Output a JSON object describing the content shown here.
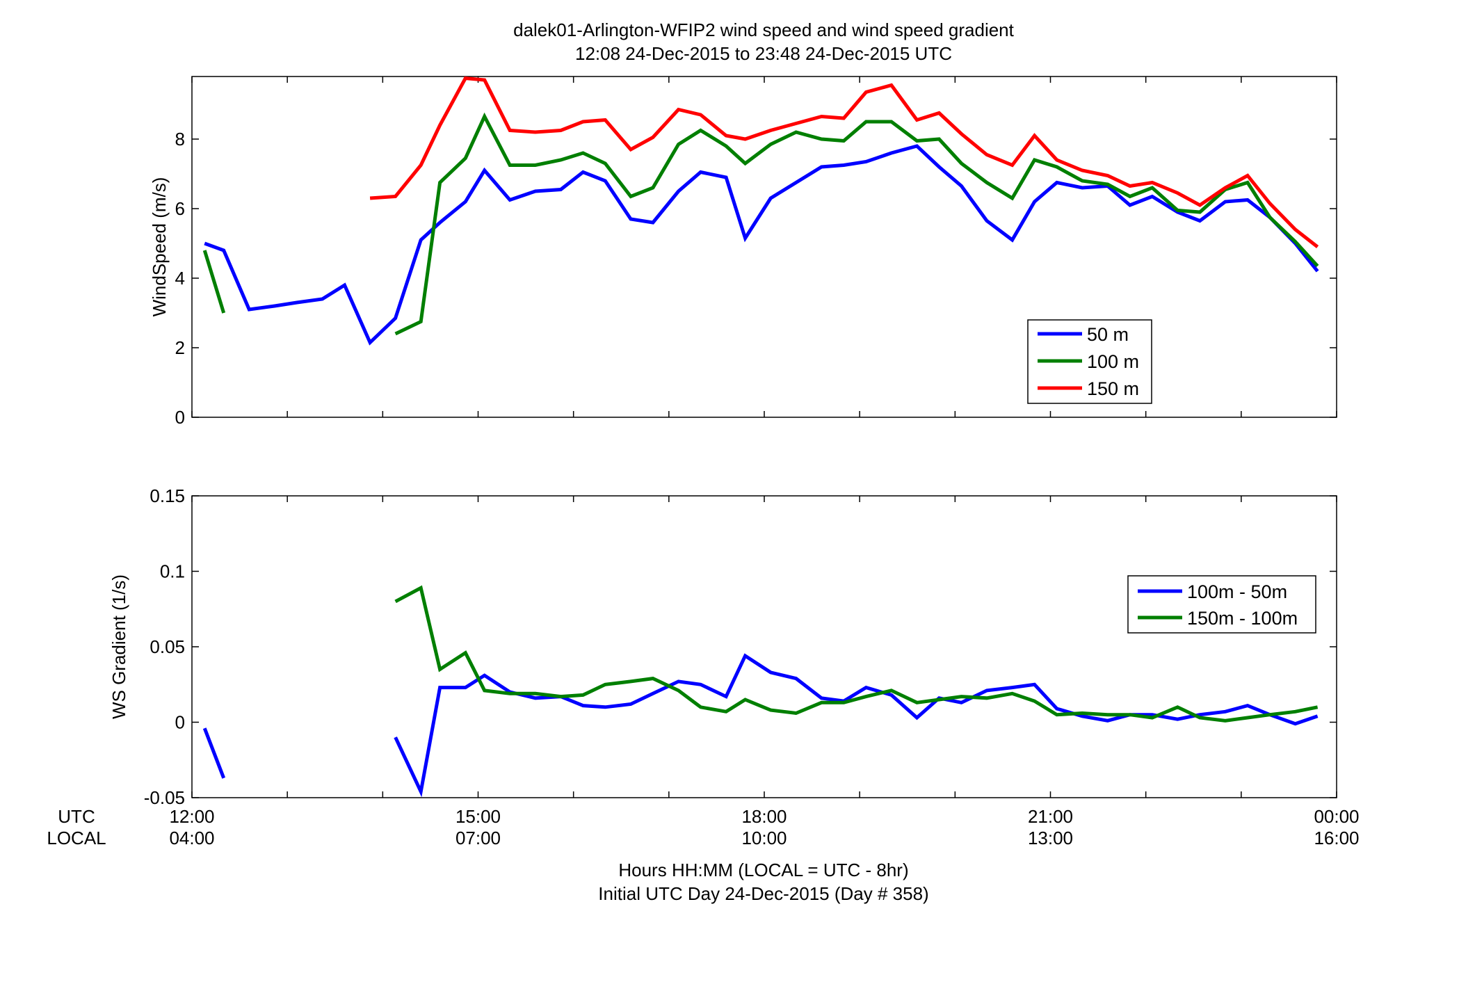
{
  "figure": {
    "title_line1": "dalek01-Arlington-WFIP2  wind speed and wind speed gradient",
    "title_line2": "12:08 24-Dec-2015 to 23:48 24-Dec-2015  UTC",
    "xlabel_line1": "Hours HH:MM  (LOCAL = UTC - 8hr)",
    "xlabel_line2": "Initial UTC Day 24-Dec-2015 (Day # 358)",
    "row_label_utc": "UTC",
    "row_label_local": "LOCAL",
    "utc_ticks": [
      "12:00",
      "15:00",
      "18:00",
      "21:00",
      "00:00"
    ],
    "local_ticks": [
      "04:00",
      "07:00",
      "10:00",
      "13:00",
      "16:00"
    ]
  },
  "chart_data": [
    {
      "type": "line",
      "ylabel": "WindSpeed (m/s)",
      "xlim": [
        12,
        24
      ],
      "ylim": [
        0,
        9.8
      ],
      "yticks": [
        0,
        2,
        4,
        6,
        8
      ],
      "ytick_labels": [
        "0",
        "2",
        "4",
        "6",
        "8"
      ],
      "legend_position": "lower-right",
      "x": [
        12.133,
        12.333,
        12.6,
        12.867,
        13.1,
        13.367,
        13.6,
        13.867,
        14.133,
        14.4,
        14.6,
        14.867,
        15.067,
        15.333,
        15.6,
        15.867,
        16.1,
        16.333,
        16.6,
        16.833,
        17.1,
        17.333,
        17.6,
        17.8,
        18.067,
        18.333,
        18.6,
        18.833,
        19.067,
        19.333,
        19.6,
        19.833,
        20.067,
        20.333,
        20.6,
        20.833,
        21.067,
        21.333,
        21.6,
        21.833,
        22.067,
        22.333,
        22.567,
        22.833,
        23.067,
        23.3,
        23.567,
        23.8
      ],
      "series": [
        {
          "name": "50 m",
          "color": "#0000ff",
          "values": [
            5.0,
            4.8,
            3.1,
            3.2,
            3.3,
            3.4,
            3.8,
            2.15,
            2.85,
            5.1,
            5.6,
            6.2,
            7.1,
            6.25,
            6.5,
            6.55,
            7.05,
            6.8,
            5.7,
            5.6,
            6.5,
            7.05,
            6.9,
            5.15,
            6.3,
            6.75,
            7.2,
            7.25,
            7.35,
            7.6,
            7.8,
            7.2,
            6.65,
            5.65,
            5.1,
            6.2,
            6.75,
            6.6,
            6.65,
            6.1,
            6.35,
            5.9,
            5.65,
            6.2,
            6.25,
            5.75,
            5.0,
            4.2
          ]
        },
        {
          "name": "100 m",
          "color": "#007f00",
          "values": [
            4.8,
            3.0,
            null,
            null,
            null,
            null,
            null,
            null,
            2.4,
            2.75,
            6.75,
            7.45,
            8.65,
            7.25,
            7.25,
            7.4,
            7.6,
            7.3,
            6.35,
            6.6,
            7.85,
            8.25,
            7.8,
            7.3,
            7.85,
            8.2,
            8.0,
            7.95,
            8.5,
            8.5,
            7.95,
            8.0,
            7.3,
            6.75,
            6.3,
            7.4,
            7.2,
            6.8,
            6.7,
            6.35,
            6.6,
            5.95,
            5.9,
            6.55,
            6.75,
            5.75,
            5.05,
            4.35
          ]
        },
        {
          "name": "150 m",
          "color": "#ff0000",
          "values": [
            null,
            null,
            null,
            null,
            null,
            null,
            null,
            6.3,
            6.35,
            7.25,
            8.4,
            9.75,
            9.7,
            8.25,
            8.2,
            8.25,
            8.5,
            8.55,
            7.7,
            8.05,
            8.85,
            8.7,
            8.1,
            8.0,
            8.25,
            8.45,
            8.65,
            8.6,
            9.35,
            9.55,
            8.55,
            8.75,
            8.15,
            7.55,
            7.25,
            8.1,
            7.4,
            7.1,
            6.95,
            6.65,
            6.75,
            6.45,
            6.1,
            6.6,
            6.95,
            6.15,
            5.4,
            4.9
          ]
        }
      ]
    },
    {
      "type": "line",
      "ylabel": "WS Gradient (1/s)",
      "xlim": [
        12,
        24
      ],
      "ylim": [
        -0.05,
        0.15
      ],
      "yticks": [
        -0.05,
        0,
        0.05,
        0.1,
        0.15
      ],
      "ytick_labels": [
        "-0.05",
        "0",
        "0.05",
        "0.1",
        "0.15"
      ],
      "legend_position": "upper-right",
      "x": [
        12.133,
        12.333,
        12.6,
        12.867,
        13.1,
        13.367,
        13.6,
        13.867,
        14.133,
        14.4,
        14.6,
        14.867,
        15.067,
        15.333,
        15.6,
        15.867,
        16.1,
        16.333,
        16.6,
        16.833,
        17.1,
        17.333,
        17.6,
        17.8,
        18.067,
        18.333,
        18.6,
        18.833,
        19.067,
        19.333,
        19.6,
        19.833,
        20.067,
        20.333,
        20.6,
        20.833,
        21.067,
        21.333,
        21.6,
        21.833,
        22.067,
        22.333,
        22.567,
        22.833,
        23.067,
        23.3,
        23.567,
        23.8
      ],
      "series": [
        {
          "name": "100m - 50m",
          "color": "#0000ff",
          "values": [
            -0.004,
            -0.037,
            null,
            null,
            null,
            null,
            null,
            null,
            -0.01,
            -0.046,
            0.023,
            0.023,
            0.031,
            0.02,
            0.016,
            0.017,
            0.011,
            0.01,
            0.012,
            0.019,
            0.027,
            0.025,
            0.017,
            0.044,
            0.033,
            0.029,
            0.016,
            0.014,
            0.023,
            0.018,
            0.003,
            0.016,
            0.013,
            0.021,
            0.023,
            0.025,
            0.009,
            0.004,
            0.001,
            0.005,
            0.005,
            0.002,
            0.005,
            0.007,
            0.011,
            0.005,
            -0.001,
            0.004
          ]
        },
        {
          "name": "150m - 100m",
          "color": "#007f00",
          "values": [
            null,
            null,
            null,
            null,
            null,
            null,
            null,
            null,
            0.08,
            0.089,
            0.035,
            0.046,
            0.021,
            0.019,
            0.019,
            0.017,
            0.018,
            0.025,
            0.027,
            0.029,
            0.021,
            0.01,
            0.007,
            0.015,
            0.008,
            0.006,
            0.013,
            0.013,
            0.017,
            0.021,
            0.013,
            0.015,
            0.017,
            0.016,
            0.019,
            0.014,
            0.005,
            0.006,
            0.005,
            0.005,
            0.003,
            0.01,
            0.003,
            0.001,
            0.003,
            0.005,
            0.007,
            0.01
          ]
        }
      ]
    }
  ]
}
